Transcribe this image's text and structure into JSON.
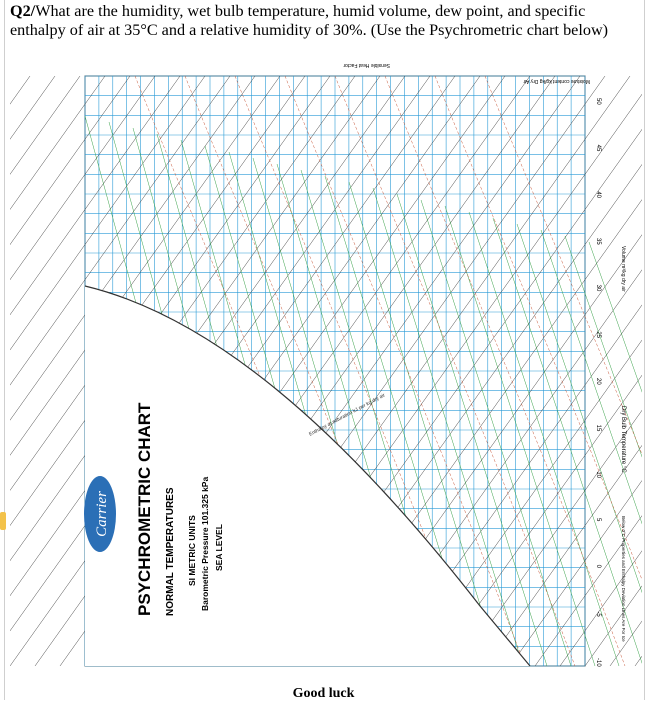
{
  "question": {
    "label": "Q2/",
    "text": "What are the humidity, wet bulb temperature, humid volume, dew point, and specific enthalpy of air at 35°C and a relative humidity of 30%. (Use the Psychrometric chart below)"
  },
  "chart": {
    "brand": "Carrier",
    "title": "PSYCHROMETRIC CHART",
    "subtitle": "NORMAL TEMPERATURES",
    "units": "SI METRIC UNITS",
    "pressure": "Barometric Pressure 101.325 kPa",
    "level": "SEA LEVEL",
    "axis_dry_bulb": "Dry Bulb Temperature °C",
    "axis_moisture": "Moisture content kg/kg Dry Air",
    "axis_volume": "Volume m³/kg dry air",
    "axis_shf": "Sensible Heat Factor",
    "enthalpy_label": "Enthalpy at saturation kJ per kg dry air",
    "below_note": "Below 0°C Properties and Enthalpy Deviation Lines Are For Ice",
    "dry_bulb_ticks": [
      "-10",
      "-5",
      "0",
      "5",
      "10",
      "15",
      "20",
      "25",
      "30",
      "35",
      "40",
      "45",
      "50"
    ],
    "colors": {
      "grid": "#2a9bd6",
      "wetbulb": "#3aa24a",
      "enthalpy": "#444444",
      "rh": "#c8583a",
      "volume": "#7a5ab8",
      "accent": "#e0a020"
    }
  },
  "footer": {
    "text": "Good luck"
  }
}
